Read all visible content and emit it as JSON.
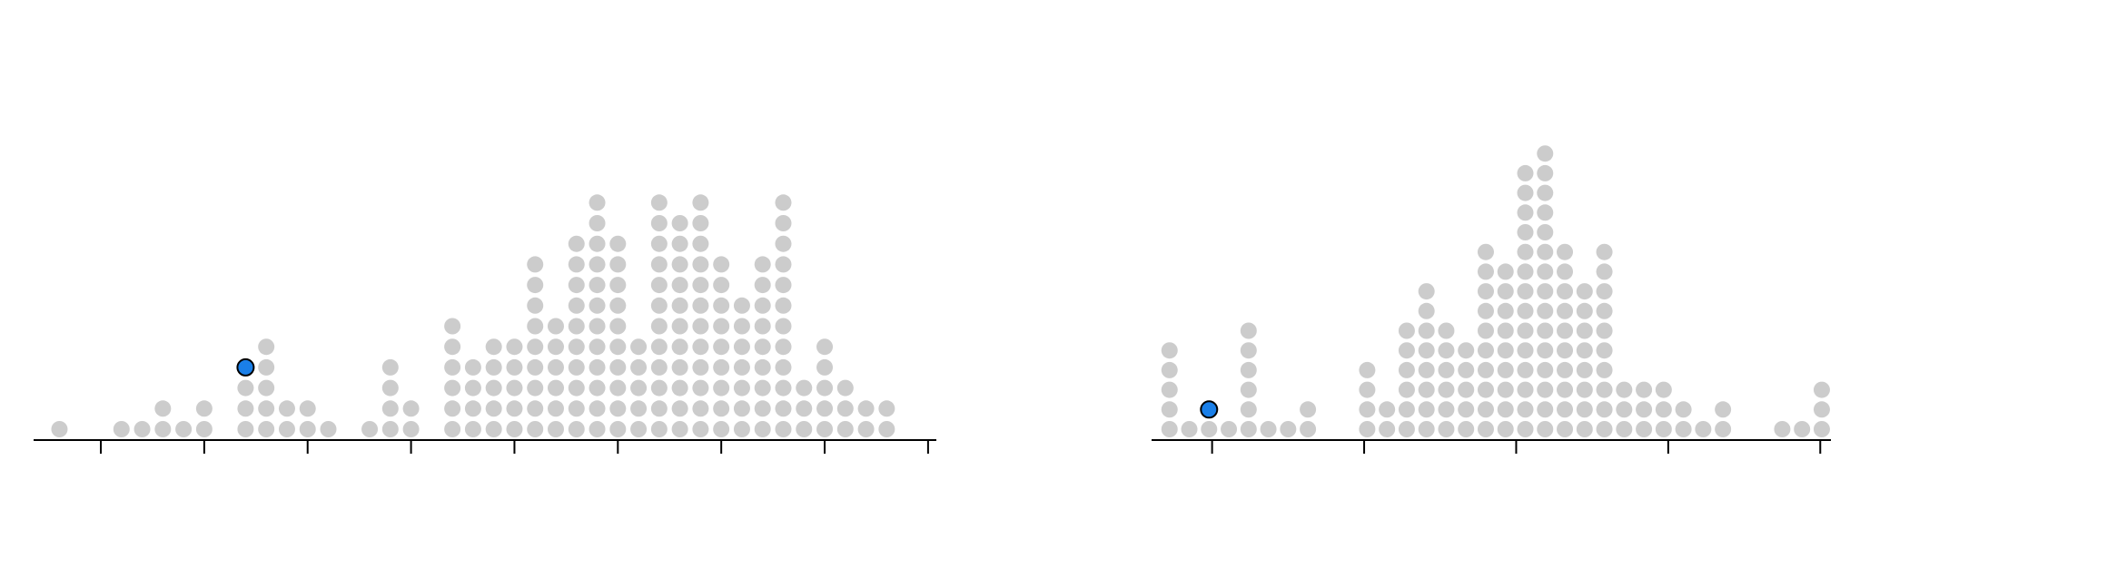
{
  "chart_data": [
    {
      "type": "dotplot",
      "x": [
        -2,
        1,
        2,
        3,
        4,
        5,
        7,
        8,
        9,
        10,
        11,
        13,
        14,
        15,
        17,
        18,
        19,
        20,
        21,
        22,
        23,
        24,
        25,
        26,
        27,
        28,
        29,
        30,
        31,
        32,
        33,
        34,
        35,
        36,
        37,
        38
      ],
      "values": [
        1,
        1,
        1,
        2,
        1,
        2,
        4,
        5,
        2,
        2,
        1,
        1,
        4,
        2,
        6,
        4,
        5,
        5,
        9,
        6,
        10,
        12,
        10,
        5,
        12,
        11,
        12,
        9,
        7,
        9,
        12,
        3,
        5,
        3,
        2,
        2
      ],
      "highlight_index": 6,
      "color": "#cccccc",
      "highlight_color": "#1a7fe8",
      "xlim": [
        -3.25,
        40.4
      ],
      "xticks": [
        0,
        5,
        10,
        15,
        20,
        25,
        30,
        35,
        40
      ]
    },
    {
      "type": "dotplot",
      "x": [
        -2.8,
        -1.5,
        -0.2,
        1.1,
        2.4,
        3.7,
        5,
        6.3,
        10.2,
        11.5,
        12.8,
        14.1,
        15.4,
        16.7,
        18,
        19.3,
        20.6,
        21.9,
        23.2,
        24.5,
        25.8,
        27.1,
        28.4,
        29.7,
        31,
        32.3,
        33.6,
        37.5,
        38.8,
        40.1
      ],
      "values": [
        5,
        1,
        2,
        1,
        6,
        1,
        1,
        2,
        4,
        2,
        6,
        8,
        6,
        5,
        10,
        9,
        14,
        15,
        10,
        8,
        10,
        3,
        3,
        3,
        2,
        1,
        2,
        1,
        1,
        3
      ],
      "highlight_index": 2,
      "color": "#cccccc",
      "highlight_color": "#1a7fe8",
      "xlim": [
        -3.98,
        40.7
      ],
      "xticks": [
        0,
        10,
        20,
        30,
        40
      ]
    }
  ]
}
